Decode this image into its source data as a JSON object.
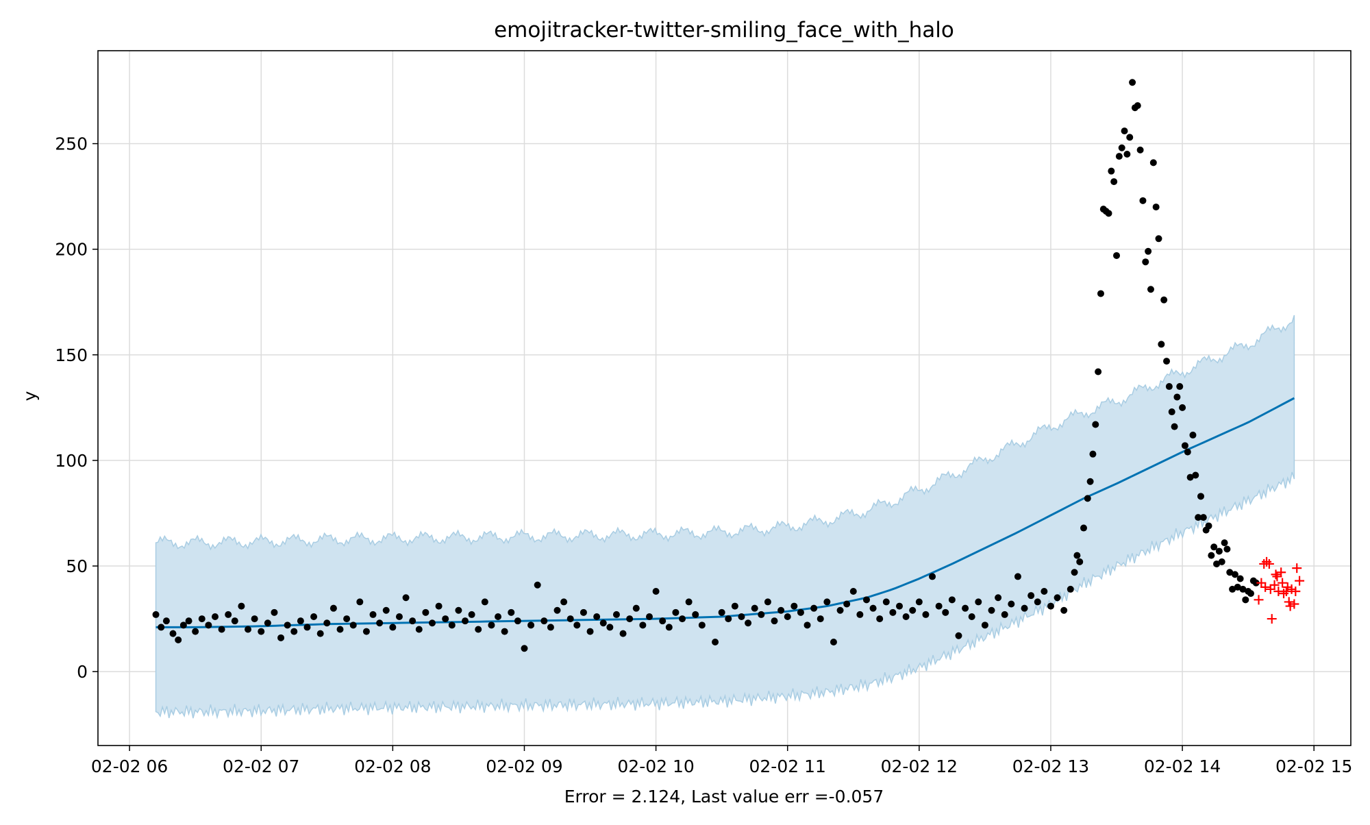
{
  "chart_data": {
    "type": "scatter",
    "title": "emojitracker-twitter-smiling_face_with_halo",
    "xlabel": "Error = 2.124, Last value err =-0.057",
    "ylabel": "y",
    "x_tick_labels": [
      "02-02 06",
      "02-02 07",
      "02-02 08",
      "02-02 09",
      "02-02 10",
      "02-02 11",
      "02-02 12",
      "02-02 13",
      "02-02 14",
      "02-02 15"
    ],
    "y_tick_labels": [
      "0",
      "50",
      "100",
      "150",
      "200",
      "250"
    ],
    "xlim_hours": [
      5.76,
      15.28
    ],
    "ylim": [
      -35,
      294
    ],
    "grid": true,
    "colors": {
      "observed": "#000000",
      "forecast_line": "#0072B2",
      "interval_fill": "#cfe3f0",
      "interval_edge": "#a9cde3",
      "holdout": "#ff0000",
      "grid": "#dcdcdc"
    },
    "forecast_start_hour": 6.2,
    "forecast_end_hour": 14.85,
    "trend_points": [
      [
        6.2,
        21
      ],
      [
        6.5,
        21
      ],
      [
        7.0,
        21.5
      ],
      [
        7.5,
        22.5
      ],
      [
        8.0,
        23
      ],
      [
        8.5,
        23.5
      ],
      [
        9.0,
        24
      ],
      [
        9.5,
        24.5
      ],
      [
        10.0,
        25
      ],
      [
        10.5,
        26
      ],
      [
        11.0,
        28.5
      ],
      [
        11.3,
        31
      ],
      [
        11.6,
        35
      ],
      [
        11.8,
        39
      ],
      [
        12.0,
        44
      ],
      [
        12.25,
        51
      ],
      [
        12.5,
        58.5
      ],
      [
        12.75,
        66
      ],
      [
        13.0,
        74
      ],
      [
        13.25,
        82
      ],
      [
        13.5,
        89
      ],
      [
        13.75,
        96.5
      ],
      [
        14.0,
        104
      ],
      [
        14.25,
        111
      ],
      [
        14.5,
        118
      ],
      [
        14.85,
        129.5
      ]
    ],
    "interval_width_points": [
      [
        6.2,
        40
      ],
      [
        10.5,
        40
      ],
      [
        11.0,
        40
      ],
      [
        11.5,
        41
      ],
      [
        12.0,
        42
      ],
      [
        12.5,
        42
      ],
      [
        13.0,
        42
      ],
      [
        13.5,
        39
      ],
      [
        14.0,
        38
      ],
      [
        14.5,
        37
      ],
      [
        14.85,
        37.5
      ]
    ],
    "observed_points": [
      [
        6.2,
        27
      ],
      [
        6.24,
        21
      ],
      [
        6.28,
        24
      ],
      [
        6.33,
        18
      ],
      [
        6.37,
        15
      ],
      [
        6.41,
        22
      ],
      [
        6.45,
        24
      ],
      [
        6.5,
        19
      ],
      [
        6.55,
        25
      ],
      [
        6.6,
        22
      ],
      [
        6.65,
        26
      ],
      [
        6.7,
        20
      ],
      [
        6.75,
        27
      ],
      [
        6.8,
        24
      ],
      [
        6.85,
        31
      ],
      [
        6.9,
        20
      ],
      [
        6.95,
        25
      ],
      [
        7.0,
        19
      ],
      [
        7.05,
        23
      ],
      [
        7.1,
        28
      ],
      [
        7.15,
        16
      ],
      [
        7.2,
        22
      ],
      [
        7.25,
        19
      ],
      [
        7.3,
        24
      ],
      [
        7.35,
        21
      ],
      [
        7.4,
        26
      ],
      [
        7.45,
        18
      ],
      [
        7.5,
        23
      ],
      [
        7.55,
        30
      ],
      [
        7.6,
        20
      ],
      [
        7.65,
        25
      ],
      [
        7.7,
        22
      ],
      [
        7.75,
        33
      ],
      [
        7.8,
        19
      ],
      [
        7.85,
        27
      ],
      [
        7.9,
        23
      ],
      [
        7.95,
        29
      ],
      [
        8.0,
        21
      ],
      [
        8.05,
        26
      ],
      [
        8.1,
        35
      ],
      [
        8.15,
        24
      ],
      [
        8.2,
        20
      ],
      [
        8.25,
        28
      ],
      [
        8.3,
        23
      ],
      [
        8.35,
        31
      ],
      [
        8.4,
        25
      ],
      [
        8.45,
        22
      ],
      [
        8.5,
        29
      ],
      [
        8.55,
        24
      ],
      [
        8.6,
        27
      ],
      [
        8.65,
        20
      ],
      [
        8.7,
        33
      ],
      [
        8.75,
        22
      ],
      [
        8.8,
        26
      ],
      [
        8.85,
        19
      ],
      [
        8.9,
        28
      ],
      [
        8.95,
        24
      ],
      [
        9.0,
        11
      ],
      [
        9.05,
        22
      ],
      [
        9.1,
        41
      ],
      [
        9.15,
        24
      ],
      [
        9.2,
        21
      ],
      [
        9.25,
        29
      ],
      [
        9.3,
        33
      ],
      [
        9.35,
        25
      ],
      [
        9.4,
        22
      ],
      [
        9.45,
        28
      ],
      [
        9.5,
        19
      ],
      [
        9.55,
        26
      ],
      [
        9.6,
        23
      ],
      [
        9.65,
        21
      ],
      [
        9.7,
        27
      ],
      [
        9.75,
        18
      ],
      [
        9.8,
        25
      ],
      [
        9.85,
        30
      ],
      [
        9.9,
        22
      ],
      [
        9.95,
        26
      ],
      [
        10.0,
        38
      ],
      [
        10.05,
        24
      ],
      [
        10.1,
        21
      ],
      [
        10.15,
        28
      ],
      [
        10.2,
        25
      ],
      [
        10.25,
        33
      ],
      [
        10.3,
        27
      ],
      [
        10.35,
        22
      ],
      [
        10.45,
        14
      ],
      [
        10.5,
        28
      ],
      [
        10.55,
        25
      ],
      [
        10.6,
        31
      ],
      [
        10.65,
        26
      ],
      [
        10.7,
        23
      ],
      [
        10.75,
        30
      ],
      [
        10.8,
        27
      ],
      [
        10.85,
        33
      ],
      [
        10.9,
        24
      ],
      [
        10.95,
        29
      ],
      [
        11.0,
        26
      ],
      [
        11.05,
        31
      ],
      [
        11.1,
        28
      ],
      [
        11.15,
        22
      ],
      [
        11.2,
        30
      ],
      [
        11.25,
        25
      ],
      [
        11.3,
        33
      ],
      [
        11.35,
        14
      ],
      [
        11.4,
        29
      ],
      [
        11.45,
        32
      ],
      [
        11.5,
        38
      ],
      [
        11.55,
        27
      ],
      [
        11.6,
        34
      ],
      [
        11.65,
        30
      ],
      [
        11.7,
        25
      ],
      [
        11.75,
        33
      ],
      [
        11.8,
        28
      ],
      [
        11.85,
        31
      ],
      [
        11.9,
        26
      ],
      [
        11.95,
        29
      ],
      [
        12.0,
        33
      ],
      [
        12.05,
        27
      ],
      [
        12.1,
        45
      ],
      [
        12.15,
        31
      ],
      [
        12.2,
        28
      ],
      [
        12.25,
        34
      ],
      [
        12.3,
        17
      ],
      [
        12.35,
        30
      ],
      [
        12.4,
        26
      ],
      [
        12.45,
        33
      ],
      [
        12.5,
        22
      ],
      [
        12.55,
        29
      ],
      [
        12.6,
        35
      ],
      [
        12.65,
        27
      ],
      [
        12.7,
        32
      ],
      [
        12.75,
        45
      ],
      [
        12.8,
        30
      ],
      [
        12.85,
        36
      ],
      [
        12.9,
        33
      ],
      [
        12.95,
        38
      ],
      [
        13.0,
        31
      ],
      [
        13.05,
        35
      ],
      [
        13.1,
        29
      ],
      [
        13.15,
        39
      ],
      [
        13.18,
        47
      ],
      [
        13.2,
        55
      ],
      [
        13.22,
        52
      ],
      [
        13.25,
        68
      ],
      [
        13.28,
        82
      ],
      [
        13.3,
        90
      ],
      [
        13.32,
        103
      ],
      [
        13.34,
        117
      ],
      [
        13.36,
        142
      ],
      [
        13.38,
        179
      ],
      [
        13.4,
        219
      ],
      [
        13.42,
        218
      ],
      [
        13.44,
        217
      ],
      [
        13.46,
        237
      ],
      [
        13.48,
        232
      ],
      [
        13.5,
        197
      ],
      [
        13.52,
        244
      ],
      [
        13.54,
        248
      ],
      [
        13.56,
        256
      ],
      [
        13.58,
        245
      ],
      [
        13.6,
        253
      ],
      [
        13.62,
        279
      ],
      [
        13.64,
        267
      ],
      [
        13.66,
        268
      ],
      [
        13.68,
        247
      ],
      [
        13.7,
        223
      ],
      [
        13.72,
        194
      ],
      [
        13.74,
        199
      ],
      [
        13.76,
        181
      ],
      [
        13.78,
        241
      ],
      [
        13.8,
        220
      ],
      [
        13.82,
        205
      ],
      [
        13.84,
        155
      ],
      [
        13.86,
        176
      ],
      [
        13.88,
        147
      ],
      [
        13.9,
        135
      ],
      [
        13.92,
        123
      ],
      [
        13.94,
        116
      ],
      [
        13.96,
        130
      ],
      [
        13.98,
        135
      ],
      [
        14.0,
        125
      ],
      [
        14.02,
        107
      ],
      [
        14.04,
        104
      ],
      [
        14.06,
        92
      ],
      [
        14.08,
        112
      ],
      [
        14.1,
        93
      ],
      [
        14.12,
        73
      ],
      [
        14.14,
        83
      ],
      [
        14.16,
        73
      ],
      [
        14.18,
        67
      ],
      [
        14.2,
        69
      ],
      [
        14.22,
        55
      ],
      [
        14.24,
        59
      ],
      [
        14.26,
        51
      ],
      [
        14.28,
        57
      ],
      [
        14.3,
        52
      ],
      [
        14.32,
        61
      ],
      [
        14.34,
        58
      ],
      [
        14.36,
        47
      ],
      [
        14.38,
        39
      ],
      [
        14.4,
        46
      ],
      [
        14.42,
        40
      ],
      [
        14.44,
        44
      ],
      [
        14.46,
        39
      ],
      [
        14.48,
        34
      ],
      [
        14.5,
        38
      ],
      [
        14.52,
        37
      ],
      [
        14.54,
        43
      ],
      [
        14.56,
        42
      ]
    ],
    "holdout_points": [
      [
        14.58,
        34
      ],
      [
        14.6,
        42
      ],
      [
        14.62,
        51
      ],
      [
        14.63,
        40
      ],
      [
        14.64,
        52
      ],
      [
        14.66,
        51
      ],
      [
        14.67,
        39
      ],
      [
        14.68,
        25
      ],
      [
        14.7,
        41
      ],
      [
        14.71,
        46
      ],
      [
        14.72,
        45
      ],
      [
        14.73,
        38
      ],
      [
        14.75,
        47
      ],
      [
        14.76,
        42
      ],
      [
        14.77,
        37
      ],
      [
        14.79,
        38
      ],
      [
        14.8,
        40
      ],
      [
        14.81,
        33
      ],
      [
        14.82,
        31
      ],
      [
        14.83,
        39
      ],
      [
        14.85,
        32
      ],
      [
        14.86,
        38
      ],
      [
        14.87,
        49
      ],
      [
        14.89,
        43
      ]
    ]
  }
}
